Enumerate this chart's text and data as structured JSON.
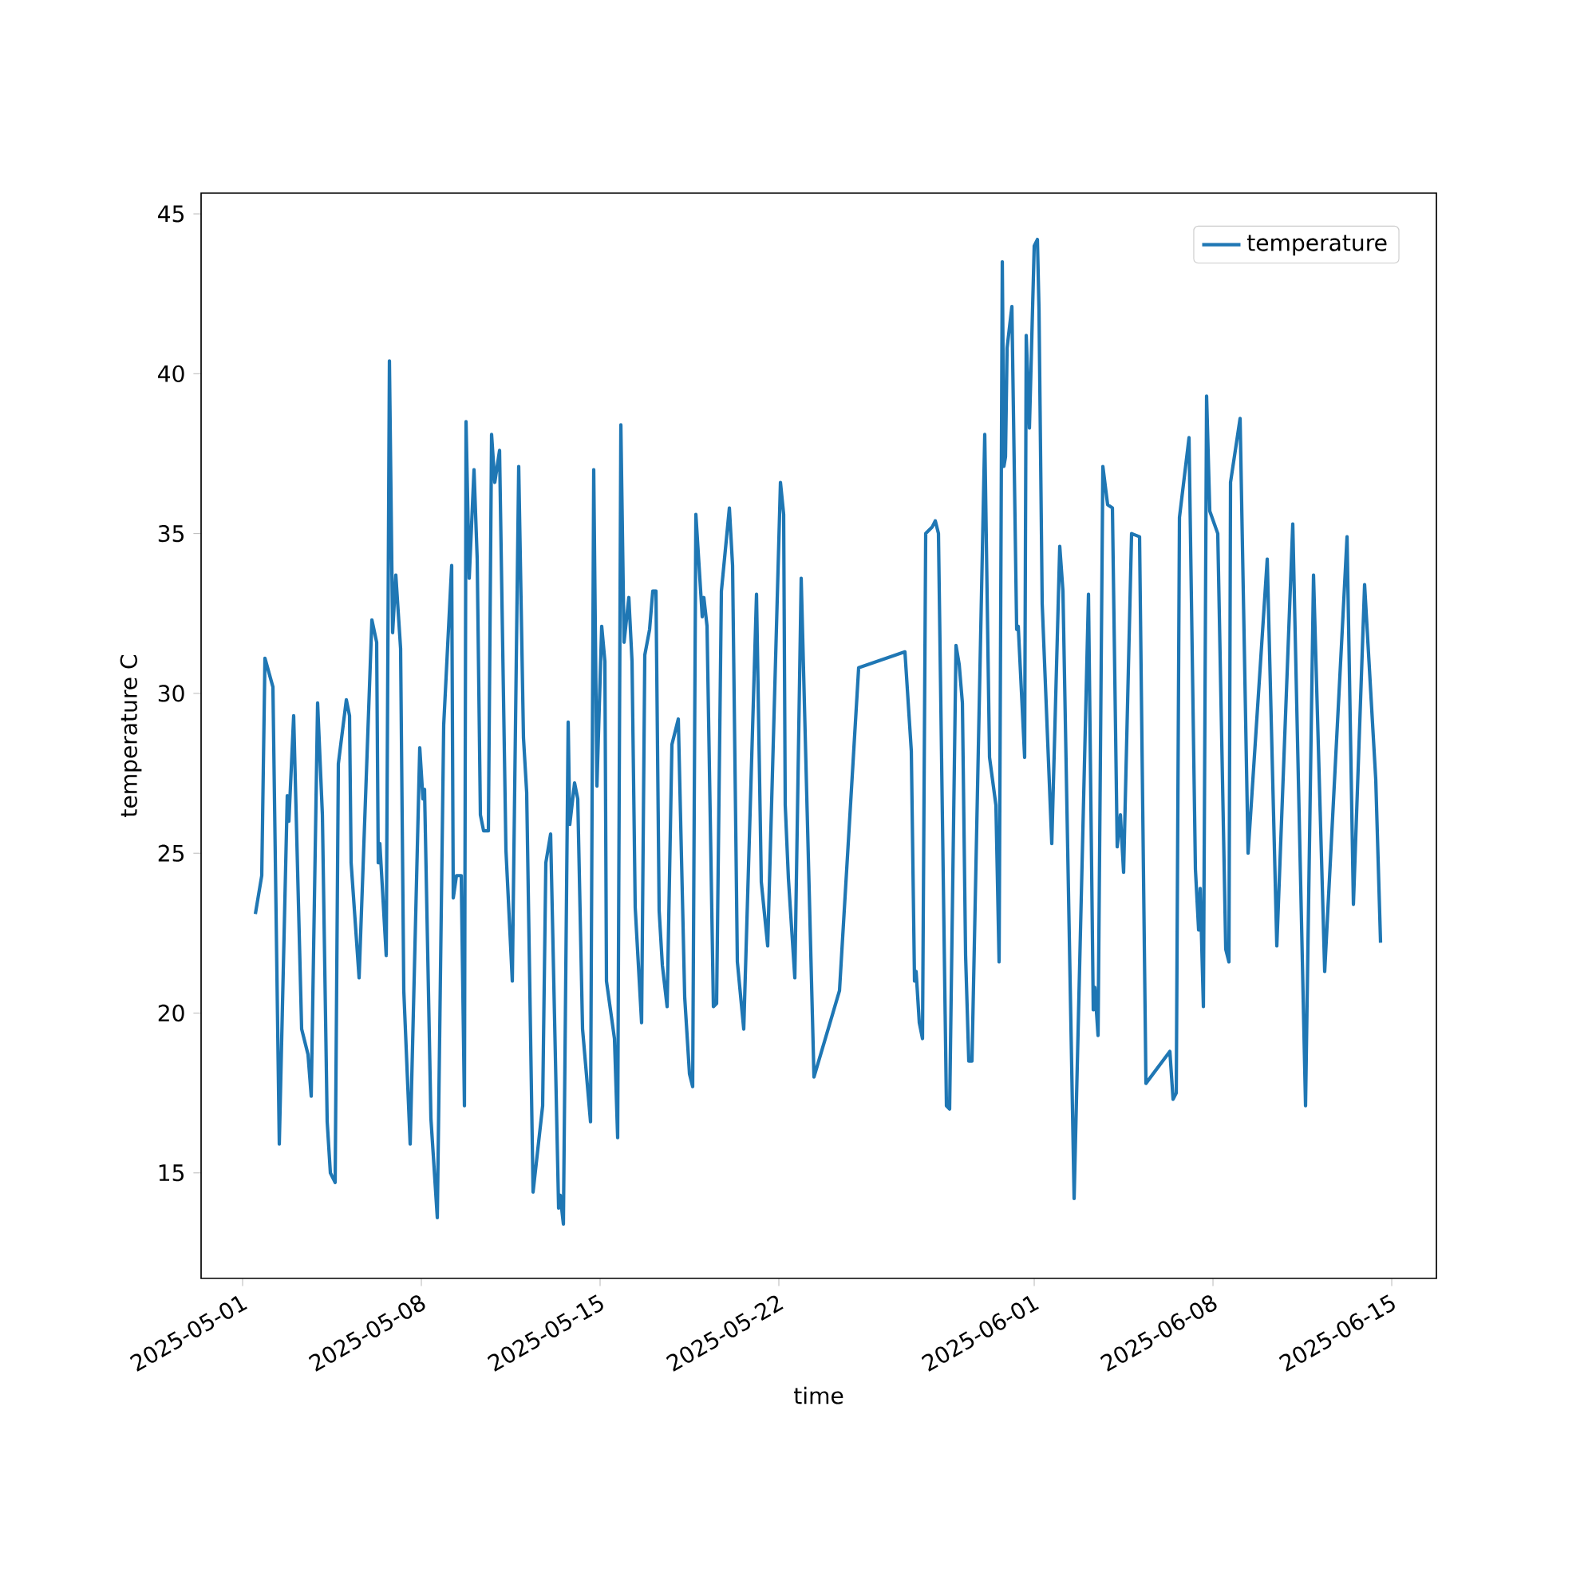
{
  "chart_data": {
    "type": "line",
    "xlabel": "time",
    "ylabel": "temperature C",
    "legend": "top right",
    "grid": false,
    "marker": "none",
    "line_style": "solid",
    "xlim": [
      "2025-04-29T09:00",
      "2025-06-16T18:00"
    ],
    "ylim": [
      11.7,
      45.65
    ],
    "xticks": [
      "2025-05-01",
      "2025-05-08",
      "2025-05-15",
      "2025-05-22",
      "2025-06-01",
      "2025-06-08",
      "2025-06-15"
    ],
    "yticks": [
      15,
      20,
      25,
      30,
      35,
      40,
      45
    ],
    "series": [
      {
        "name": "temperature",
        "color": "#1f77b4",
        "x": [
          "2025-05-01T12:00",
          "2025-05-01T18:00",
          "2025-05-01T21:00",
          "2025-05-02T04:30",
          "2025-05-02T10:30",
          "2025-05-02T18:00",
          "2025-05-02T19:30",
          "2025-05-03T00:00",
          "2025-05-03T07:30",
          "2025-05-03T13:30",
          "2025-05-03T16:30",
          "2025-05-03T22:30",
          "2025-05-04T03:00",
          "2025-05-04T07:30",
          "2025-05-04T10:30",
          "2025-05-04T15:00",
          "2025-05-04T18:00",
          "2025-05-05T01:30",
          "2025-05-05T04:30",
          "2025-05-05T06:00",
          "2025-05-05T13:30",
          "2025-05-06T01:30",
          "2025-05-06T06:00",
          "2025-05-06T07:30",
          "2025-05-06T09:00",
          "2025-05-06T15:00",
          "2025-05-06T18:00",
          "2025-05-06T21:00",
          "2025-05-07T00:00",
          "2025-05-07T04:30",
          "2025-05-07T07:30",
          "2025-05-07T13:30",
          "2025-05-07T22:30",
          "2025-05-08T01:30",
          "2025-05-08T03:00",
          "2025-05-08T09:00",
          "2025-05-08T15:00",
          "2025-05-08T21:00",
          "2025-05-09T04:30",
          "2025-05-09T06:00",
          "2025-05-09T09:00",
          "2025-05-09T13:30",
          "2025-05-09T16:30",
          "2025-05-09T18:00",
          "2025-05-09T21:00",
          "2025-05-10T01:30",
          "2025-05-10T04:30",
          "2025-05-10T07:30",
          "2025-05-10T10:30",
          "2025-05-10T15:00",
          "2025-05-10T18:00",
          "2025-05-10T21:00",
          "2025-05-11T01:30",
          "2025-05-11T07:30",
          "2025-05-11T13:30",
          "2025-05-11T19:30",
          "2025-05-12T00:00",
          "2025-05-12T03:00",
          "2025-05-12T09:00",
          "2025-05-12T18:00",
          "2025-05-12T21:00",
          "2025-05-13T01:30",
          "2025-05-13T09:00",
          "2025-05-13T10:30",
          "2025-05-13T13:30",
          "2025-05-13T18:00",
          "2025-05-13T19:30",
          "2025-05-14T00:00",
          "2025-05-14T03:00",
          "2025-05-14T07:30",
          "2025-05-14T15:00",
          "2025-05-14T18:00",
          "2025-05-14T21:00",
          "2025-05-15T01:30",
          "2025-05-15T04:30",
          "2025-05-15T06:00",
          "2025-05-15T13:30",
          "2025-05-15T16:30",
          "2025-05-15T19:30",
          "2025-05-15T22:30",
          "2025-05-16T03:00",
          "2025-05-16T06:00",
          "2025-05-16T09:00",
          "2025-05-16T15:00",
          "2025-05-16T18:00",
          "2025-05-16T22:30",
          "2025-05-17T01:30",
          "2025-05-17T04:30",
          "2025-05-17T07:30",
          "2025-05-17T10:30",
          "2025-05-17T15:00",
          "2025-05-17T19:30",
          "2025-05-18T01:30",
          "2025-05-18T07:30",
          "2025-05-18T12:00",
          "2025-05-18T15:00",
          "2025-05-18T18:00",
          "2025-05-19T00:00",
          "2025-05-19T01:30",
          "2025-05-19T04:30",
          "2025-05-19T10:30",
          "2025-05-19T13:30",
          "2025-05-19T18:00",
          "2025-05-20T01:30",
          "2025-05-20T04:30",
          "2025-05-20T09:00",
          "2025-05-20T15:00",
          "2025-05-21T03:00",
          "2025-05-21T07:30",
          "2025-05-21T13:30",
          "2025-05-22T01:30",
          "2025-05-22T04:30",
          "2025-05-22T06:00",
          "2025-05-22T09:00",
          "2025-05-22T15:00",
          "2025-05-22T21:00",
          "2025-05-23T09:00",
          "2025-05-24T09:00",
          "2025-05-25T03:00",
          "2025-05-26T22:30",
          "2025-05-27T04:30",
          "2025-05-27T07:30",
          "2025-05-27T09:00",
          "2025-05-27T12:00",
          "2025-05-27T15:00",
          "2025-05-27T18:00",
          "2025-05-28T00:00",
          "2025-05-28T03:00",
          "2025-05-28T06:00",
          "2025-05-28T13:30",
          "2025-05-28T16:30",
          "2025-05-28T22:30",
          "2025-05-29T01:30",
          "2025-05-29T04:30",
          "2025-05-29T07:30",
          "2025-05-29T10:30",
          "2025-05-29T13:30",
          "2025-05-30T01:30",
          "2025-05-30T06:00",
          "2025-05-30T12:00",
          "2025-05-30T15:00",
          "2025-05-30T18:00",
          "2025-05-30T19:30",
          "2025-05-30T21:00",
          "2025-05-30T22:30",
          "2025-05-31T03:00",
          "2025-05-31T07:30",
          "2025-05-31T09:00",
          "2025-05-31T15:00",
          "2025-05-31T16:30",
          "2025-05-31T19:30",
          "2025-06-01T00:00",
          "2025-06-01T03:00",
          "2025-06-01T04:30",
          "2025-06-01T07:30",
          "2025-06-01T16:30",
          "2025-06-02T00:00",
          "2025-06-02T03:00",
          "2025-06-02T13:30",
          "2025-06-03T03:00",
          "2025-06-03T07:30",
          "2025-06-03T09:00",
          "2025-06-03T12:00",
          "2025-06-03T16:30",
          "2025-06-03T21:00",
          "2025-06-04T01:30",
          "2025-06-04T06:00",
          "2025-06-04T09:00",
          "2025-06-04T12:00",
          "2025-06-04T19:30",
          "2025-06-05T03:00",
          "2025-06-05T09:00",
          "2025-06-06T07:30",
          "2025-06-06T10:30",
          "2025-06-06T13:30",
          "2025-06-06T16:30",
          "2025-06-07T01:30",
          "2025-06-07T07:30",
          "2025-06-07T10:30",
          "2025-06-07T12:00",
          "2025-06-07T15:00",
          "2025-06-07T18:00",
          "2025-06-07T21:00",
          "2025-06-08T04:30",
          "2025-06-08T12:00",
          "2025-06-08T15:00",
          "2025-06-08T16:30",
          "2025-06-09T01:30",
          "2025-06-09T09:00",
          "2025-06-10T03:00",
          "2025-06-10T12:00",
          "2025-06-11T03:00",
          "2025-06-11T15:00",
          "2025-06-11T22:30",
          "2025-06-12T09:00",
          "2025-06-13T06:00",
          "2025-06-13T12:00",
          "2025-06-13T22:30",
          "2025-06-14T09:00",
          "2025-06-14T13:30"
        ],
        "values": [
          23.1,
          24.3,
          31.1,
          30.2,
          15.9,
          26.8,
          26.0,
          29.3,
          19.5,
          18.7,
          17.4,
          29.7,
          26.2,
          16.6,
          15.0,
          14.7,
          27.8,
          29.8,
          29.3,
          24.7,
          21.1,
          32.3,
          31.6,
          24.7,
          25.3,
          21.8,
          40.4,
          31.9,
          33.7,
          31.4,
          20.7,
          15.9,
          28.3,
          26.7,
          27.0,
          16.7,
          13.6,
          29.0,
          34.0,
          23.6,
          24.3,
          24.3,
          17.1,
          38.5,
          33.6,
          37.0,
          34.2,
          26.2,
          25.7,
          25.7,
          38.1,
          36.6,
          37.6,
          25.1,
          21.0,
          37.1,
          28.6,
          26.9,
          14.4,
          17.1,
          24.7,
          25.6,
          13.9,
          14.3,
          13.4,
          29.1,
          25.9,
          27.2,
          26.7,
          19.5,
          16.6,
          37.0,
          27.1,
          32.1,
          31.0,
          21.0,
          19.2,
          16.1,
          38.4,
          31.6,
          33.0,
          31.0,
          23.3,
          19.7,
          31.2,
          32.0,
          33.2,
          33.2,
          23.2,
          21.5,
          20.2,
          28.4,
          29.2,
          20.5,
          18.1,
          17.7,
          35.6,
          32.4,
          33.0,
          32.1,
          20.2,
          20.3,
          33.2,
          35.8,
          34.0,
          21.6,
          19.5,
          33.1,
          24.1,
          22.1,
          36.6,
          35.6,
          26.5,
          24.2,
          21.1,
          33.6,
          18.0,
          20.7,
          30.8,
          31.3,
          28.2,
          21.0,
          21.3,
          19.7,
          19.2,
          35.0,
          35.2,
          35.4,
          35.0,
          17.1,
          17.0,
          31.5,
          30.9,
          29.7,
          21.8,
          18.5,
          18.5,
          38.1,
          28.0,
          26.5,
          21.6,
          43.5,
          37.1,
          37.4,
          40.8,
          42.1,
          32.0,
          32.1,
          28.0,
          41.2,
          38.3,
          44.0,
          44.2,
          42.0,
          32.8,
          25.3,
          34.6,
          33.2,
          14.2,
          33.1,
          20.1,
          20.8,
          19.3,
          37.1,
          35.9,
          35.8,
          25.2,
          26.2,
          24.4,
          35.0,
          34.9,
          17.8,
          18.8,
          17.3,
          17.5,
          35.5,
          38.0,
          24.5,
          22.6,
          23.9,
          20.2,
          39.3,
          35.7,
          35.0,
          22.0,
          21.6,
          36.6,
          38.6,
          25.0,
          34.2,
          22.1,
          35.3,
          17.1,
          33.7,
          21.3,
          34.9,
          23.4,
          33.4,
          27.3,
          22.2
        ]
      }
    ]
  }
}
